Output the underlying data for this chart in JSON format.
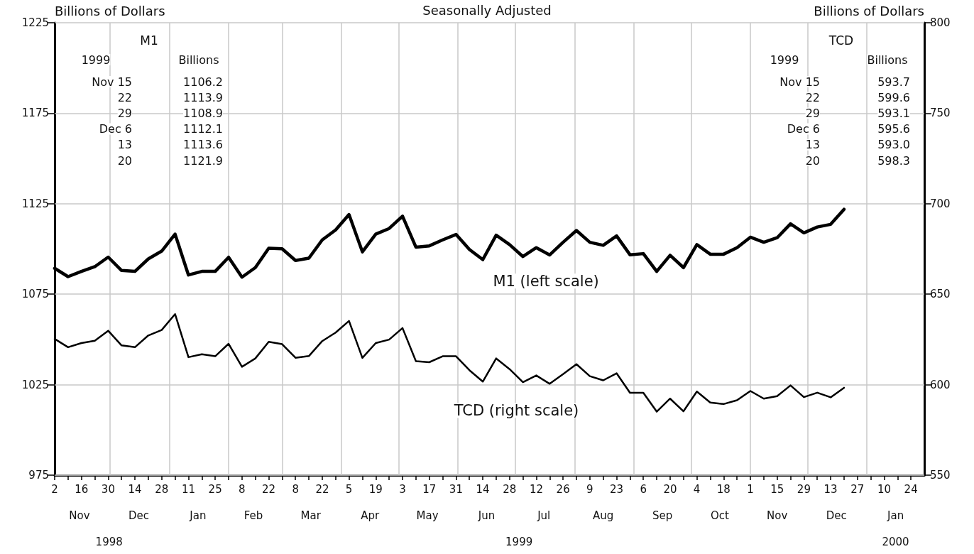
{
  "chart_data": {
    "type": "line",
    "title": "Seasonally Adjusted",
    "ylabel": "Billions of Dollars",
    "y2label": "Billions of Dollars",
    "x": [
      "1998-11-02",
      "1998-11-09",
      "1998-11-16",
      "1998-11-23",
      "1998-11-30",
      "1998-12-07",
      "1998-12-14",
      "1998-12-21",
      "1998-12-28",
      "1999-01-04",
      "1999-01-11",
      "1999-01-18",
      "1999-01-25",
      "1999-02-01",
      "1999-02-08",
      "1999-02-15",
      "1999-02-22",
      "1999-03-01",
      "1999-03-08",
      "1999-03-15",
      "1999-03-22",
      "1999-03-29",
      "1999-04-05",
      "1999-04-12",
      "1999-04-19",
      "1999-04-26",
      "1999-05-03",
      "1999-05-10",
      "1999-05-17",
      "1999-05-24",
      "1999-05-31",
      "1999-06-07",
      "1999-06-14",
      "1999-06-21",
      "1999-06-28",
      "1999-07-05",
      "1999-07-12",
      "1999-07-19",
      "1999-07-26",
      "1999-08-02",
      "1999-08-09",
      "1999-08-16",
      "1999-08-23",
      "1999-08-30",
      "1999-09-06",
      "1999-09-13",
      "1999-09-20",
      "1999-09-27",
      "1999-10-04",
      "1999-10-11",
      "1999-10-18",
      "1999-10-25",
      "1999-11-01",
      "1999-11-08",
      "1999-11-15",
      "1999-11-22",
      "1999-11-29",
      "1999-12-06",
      "1999-12-13",
      "1999-12-20"
    ],
    "series": [
      {
        "name": "M1 (left scale)",
        "color": "#000000",
        "values": [
          1089.3,
          1084.7,
          1087.6,
          1090.2,
          1095.5,
          1088.1,
          1087.6,
          1094.5,
          1098.8,
          1108.2,
          1085.6,
          1087.6,
          1087.6,
          1095.4,
          1084.4,
          1089.7,
          1100.4,
          1100.1,
          1093.6,
          1094.9,
          1105.0,
          1110.5,
          1119.0,
          1098.4,
          1108.2,
          1111.3,
          1118.1,
          1101.0,
          1101.7,
          1105.0,
          1108.0,
          1099.7,
          1094.1,
          1107.6,
          1102.4,
          1095.8,
          1100.7,
          1096.7,
          1103.7,
          1110.2,
          1103.7,
          1102.0,
          1107.2,
          1096.8,
          1097.4,
          1087.6,
          1096.5,
          1089.7,
          1102.4,
          1097.1,
          1097.1,
          1100.7,
          1106.5,
          1103.7,
          1106.2,
          1113.9,
          1108.9,
          1112.1,
          1113.6,
          1121.9
        ]
      },
      {
        "name": "TCD (right scale)",
        "color": "#000000",
        "axis": "y2",
        "values": [
          625.3,
          620.7,
          623.0,
          624.3,
          629.8,
          621.7,
          620.7,
          627.2,
          630.2,
          639.0,
          615.2,
          616.8,
          615.7,
          622.6,
          609.9,
          614.5,
          623.7,
          622.4,
          614.9,
          615.8,
          624.1,
          628.8,
          635.2,
          614.8,
          623.0,
          624.9,
          631.3,
          613.0,
          612.4,
          615.7,
          615.7,
          608.0,
          601.7,
          614.5,
          608.6,
          601.4,
          605.1,
          600.5,
          605.8,
          611.3,
          604.7,
          602.4,
          606.3,
          595.5,
          595.5,
          585.1,
          592.3,
          585.3,
          596.2,
          590.1,
          589.3,
          591.4,
          596.5,
          592.3,
          593.7,
          599.6,
          593.1,
          595.6,
          593.0,
          598.3
        ]
      }
    ],
    "xlim": [
      "1998-11-02",
      "2000-01-31"
    ],
    "xticks": [
      {
        "value": "1998-11-02",
        "label": "2"
      },
      {
        "value": "1998-11-09",
        "label": null
      },
      {
        "value": "1998-11-16",
        "label": "16"
      },
      {
        "value": "1998-11-23",
        "label": null
      },
      {
        "value": "1998-11-30",
        "label": "30"
      },
      {
        "value": "1998-12-07",
        "label": null
      },
      {
        "value": "1998-12-14",
        "label": "14"
      },
      {
        "value": "1998-12-21",
        "label": null
      },
      {
        "value": "1998-12-28",
        "label": "28"
      },
      {
        "value": "1999-01-04",
        "label": null
      },
      {
        "value": "1999-01-11",
        "label": "11"
      },
      {
        "value": "1999-01-18",
        "label": null
      },
      {
        "value": "1999-01-25",
        "label": "25"
      },
      {
        "value": "1999-02-01",
        "label": null
      },
      {
        "value": "1999-02-08",
        "label": "8"
      },
      {
        "value": "1999-02-15",
        "label": null
      },
      {
        "value": "1999-02-22",
        "label": "22"
      },
      {
        "value": "1999-03-01",
        "label": null
      },
      {
        "value": "1999-03-08",
        "label": "8"
      },
      {
        "value": "1999-03-15",
        "label": null
      },
      {
        "value": "1999-03-22",
        "label": "22"
      },
      {
        "value": "1999-03-29",
        "label": null
      },
      {
        "value": "1999-04-05",
        "label": "5"
      },
      {
        "value": "1999-04-12",
        "label": null
      },
      {
        "value": "1999-04-19",
        "label": "19"
      },
      {
        "value": "1999-04-26",
        "label": null
      },
      {
        "value": "1999-05-03",
        "label": "3"
      },
      {
        "value": "1999-05-10",
        "label": null
      },
      {
        "value": "1999-05-17",
        "label": "17"
      },
      {
        "value": "1999-05-24",
        "label": null
      },
      {
        "value": "1999-05-31",
        "label": "31"
      },
      {
        "value": "1999-06-07",
        "label": null
      },
      {
        "value": "1999-06-14",
        "label": "14"
      },
      {
        "value": "1999-06-21",
        "label": null
      },
      {
        "value": "1999-06-28",
        "label": "28"
      },
      {
        "value": "1999-07-05",
        "label": null
      },
      {
        "value": "1999-07-12",
        "label": "12"
      },
      {
        "value": "1999-07-19",
        "label": null
      },
      {
        "value": "1999-07-26",
        "label": "26"
      },
      {
        "value": "1999-08-02",
        "label": null
      },
      {
        "value": "1999-08-09",
        "label": "9"
      },
      {
        "value": "1999-08-16",
        "label": null
      },
      {
        "value": "1999-08-23",
        "label": "23"
      },
      {
        "value": "1999-08-30",
        "label": null
      },
      {
        "value": "1999-09-06",
        "label": "6"
      },
      {
        "value": "1999-09-13",
        "label": null
      },
      {
        "value": "1999-09-20",
        "label": "20"
      },
      {
        "value": "1999-09-27",
        "label": null
      },
      {
        "value": "1999-10-04",
        "label": "4"
      },
      {
        "value": "1999-10-11",
        "label": null
      },
      {
        "value": "1999-10-18",
        "label": "18"
      },
      {
        "value": "1999-10-25",
        "label": null
      },
      {
        "value": "1999-11-01",
        "label": "1"
      },
      {
        "value": "1999-11-08",
        "label": null
      },
      {
        "value": "1999-11-15",
        "label": "15"
      },
      {
        "value": "1999-11-22",
        "label": null
      },
      {
        "value": "1999-11-29",
        "label": "29"
      },
      {
        "value": "1999-12-06",
        "label": null
      },
      {
        "value": "1999-12-13",
        "label": "13"
      },
      {
        "value": "1999-12-20",
        "label": null
      },
      {
        "value": "1999-12-27",
        "label": "27"
      },
      {
        "value": "2000-01-03",
        "label": null
      },
      {
        "value": "2000-01-10",
        "label": "10"
      },
      {
        "value": "2000-01-17",
        "label": null
      },
      {
        "value": "2000-01-24",
        "label": "24"
      }
    ],
    "x2lim": [
      "1998-11-02",
      "2000-01-31"
    ],
    "x2ticks": [
      {
        "value": "1998-11-15",
        "label": "Nov"
      },
      {
        "value": "1998-12-16",
        "label": "Dec"
      },
      {
        "value": "1999-01-16",
        "label": "Jan"
      },
      {
        "value": "1999-02-14",
        "label": "Feb"
      },
      {
        "value": "1999-03-16",
        "label": "Mar"
      },
      {
        "value": "1999-04-16",
        "label": "Apr"
      },
      {
        "value": "1999-05-16",
        "label": "May"
      },
      {
        "value": "1999-06-16",
        "label": "Jun"
      },
      {
        "value": "1999-07-16",
        "label": "Jul"
      },
      {
        "value": "1999-08-16",
        "label": "Aug"
      },
      {
        "value": "1999-09-16",
        "label": "Sep"
      },
      {
        "value": "1999-10-16",
        "label": "Oct"
      },
      {
        "value": "1999-11-15",
        "label": "Nov"
      },
      {
        "value": "1999-12-16",
        "label": "Dec"
      },
      {
        "value": "2000-01-16",
        "label": "Jan"
      }
    ],
    "ylim": [
      975,
      1225
    ],
    "yticks": [
      975,
      1025,
      1075,
      1125,
      1175,
      1225
    ],
    "y2lim": [
      550,
      800
    ],
    "y2ticks": [
      550,
      600,
      650,
      700,
      750,
      800
    ],
    "grid": "y",
    "marker": "none",
    "line_style": "solid",
    "ref_lines": [
      {
        "axis": "x",
        "value": "1998-12-01",
        "color": "#c8c8c8"
      },
      {
        "axis": "x",
        "value": "1999-01-01",
        "color": "#c8c8c8"
      },
      {
        "axis": "x",
        "value": "1999-02-01",
        "color": "#c8c8c8"
      },
      {
        "axis": "x",
        "value": "1999-03-01",
        "color": "#c8c8c8"
      },
      {
        "axis": "x",
        "value": "1999-04-01",
        "color": "#c8c8c8"
      },
      {
        "axis": "x",
        "value": "1999-05-01",
        "color": "#c8c8c8"
      },
      {
        "axis": "x",
        "value": "1999-06-01",
        "color": "#c8c8c8"
      },
      {
        "axis": "x",
        "value": "1999-07-01",
        "color": "#c8c8c8"
      },
      {
        "axis": "x",
        "value": "1999-08-01",
        "color": "#c8c8c8"
      },
      {
        "axis": "x",
        "value": "1999-09-01",
        "color": "#c8c8c8"
      },
      {
        "axis": "x",
        "value": "1999-10-01",
        "color": "#c8c8c8"
      },
      {
        "axis": "x",
        "value": "1999-11-01",
        "color": "#c8c8c8"
      },
      {
        "axis": "x",
        "value": "1999-12-01",
        "color": "#c8c8c8"
      },
      {
        "axis": "x",
        "value": "2000-01-01",
        "color": "#c8c8c8"
      }
    ],
    "annotations": [
      "M1",
      "1999",
      "Billions",
      "Nov 15",
      "1106.2",
      "22",
      "1113.9",
      "29",
      "1108.9",
      "Dec 6",
      "1112.1",
      "13",
      "1113.6",
      "20",
      "1121.9",
      "TCD",
      "1999",
      "Billions",
      "Nov 15",
      "593.7",
      "22",
      "599.6",
      "29",
      "593.1",
      "Dec 6",
      "595.6",
      "13",
      "593.0",
      "20",
      "598.3",
      "1998",
      "1999",
      "2000"
    ]
  }
}
